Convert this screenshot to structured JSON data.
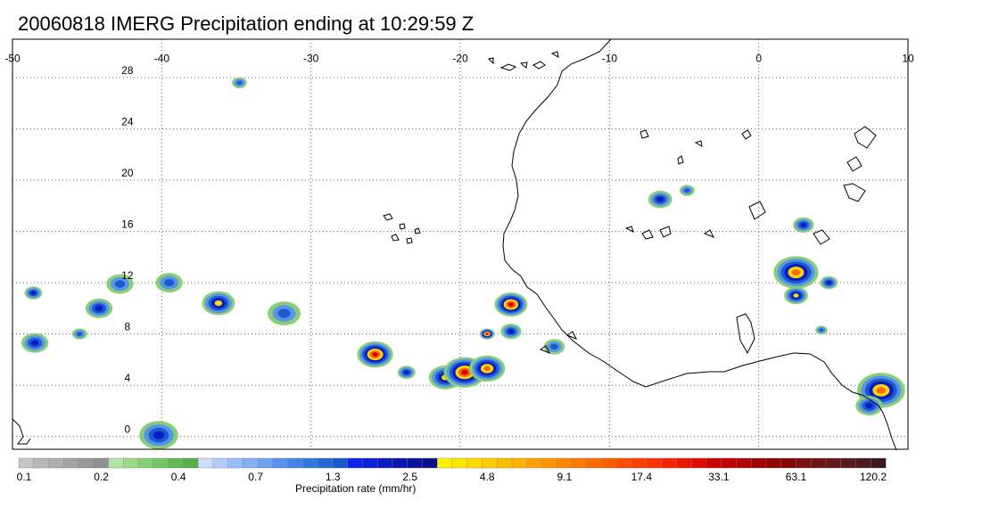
{
  "title": "20060818 IMERG Precipitation ending at 10:29:59 Z",
  "map": {
    "lon_range": [
      -50,
      10
    ],
    "lat_range": [
      -1,
      31
    ],
    "lon_ticks": [
      "-50",
      "-40",
      "-30",
      "-20",
      "-10",
      "0",
      "10"
    ],
    "lat_ticks": [
      "28",
      "24",
      "20",
      "16",
      "12",
      "8",
      "4",
      "0"
    ],
    "grid": "dotted",
    "coastline_color": "#000000"
  },
  "colorbar": {
    "title": "Precipitation rate (mm/hr)",
    "tick_labels": [
      "0.1",
      "0.2",
      "0.4",
      "0.7",
      "1.3",
      "2.5",
      "4.8",
      "9.1",
      "17.4",
      "33.1",
      "63.1",
      "120.2"
    ],
    "colors": [
      "#c4c4c4",
      "#b8b8b8",
      "#adadad",
      "#a3a3a3",
      "#999999",
      "#909090",
      "#b4e3a8",
      "#9ad98a",
      "#86cf76",
      "#74c565",
      "#63bb57",
      "#56b04b",
      "#cfdcff",
      "#b3cbff",
      "#9bbcff",
      "#85aef8",
      "#6fa0f2",
      "#5992ec",
      "#4484e6",
      "#3276df",
      "#2368d7",
      "#1a5acc",
      "#0a24ee",
      "#0a1fd8",
      "#0a1bc4",
      "#0916b0",
      "#08139d",
      "#07108b",
      "#fff200",
      "#ffe600",
      "#ffd900",
      "#ffcc00",
      "#ffbf00",
      "#ffb300",
      "#ffa200",
      "#ff9400",
      "#ff8600",
      "#ff7800",
      "#ff6a00",
      "#ff5c00",
      "#ff4c00",
      "#ff3e00",
      "#ff3000",
      "#f52400",
      "#eb1800",
      "#e00c00",
      "#cf0000",
      "#c00000",
      "#b10000",
      "#a20000",
      "#930000",
      "#850000",
      "#7a1010",
      "#6e1414",
      "#621818",
      "#561a1a",
      "#4a1a1a",
      "#3e1818"
    ]
  },
  "precip_cells": [
    {
      "lon": -48.6,
      "lat": 11.2,
      "r": 0.6,
      "level": 3
    },
    {
      "lon": -48.5,
      "lat": 7.3,
      "r": 0.9,
      "level": 3
    },
    {
      "lon": -44.2,
      "lat": 10.0,
      "r": 0.9,
      "level": 3
    },
    {
      "lon": -45.5,
      "lat": 8.0,
      "r": 0.5,
      "level": 2
    },
    {
      "lon": -42.8,
      "lat": 11.9,
      "r": 0.9,
      "level": 2
    },
    {
      "lon": -39.5,
      "lat": 12.0,
      "r": 0.9,
      "level": 2
    },
    {
      "lon": -36.2,
      "lat": 10.4,
      "r": 1.1,
      "level": 4
    },
    {
      "lon": -31.8,
      "lat": 9.6,
      "r": 1.1,
      "level": 2
    },
    {
      "lon": -34.8,
      "lat": 27.6,
      "r": 0.5,
      "level": 2
    },
    {
      "lon": -40.2,
      "lat": 0.1,
      "r": 1.3,
      "level": 3
    },
    {
      "lon": -25.7,
      "lat": 6.4,
      "r": 1.2,
      "level": 6
    },
    {
      "lon": -23.6,
      "lat": 5.0,
      "r": 0.6,
      "level": 3
    },
    {
      "lon": -21.0,
      "lat": 4.6,
      "r": 1.1,
      "level": 4
    },
    {
      "lon": -19.7,
      "lat": 5.0,
      "r": 1.4,
      "level": 6
    },
    {
      "lon": -18.2,
      "lat": 5.3,
      "r": 1.2,
      "level": 5
    },
    {
      "lon": -16.6,
      "lat": 10.3,
      "r": 1.1,
      "level": 6
    },
    {
      "lon": -18.2,
      "lat": 8.0,
      "r": 0.5,
      "level": 6
    },
    {
      "lon": -16.6,
      "lat": 8.2,
      "r": 0.7,
      "level": 3
    },
    {
      "lon": -13.7,
      "lat": 7.0,
      "r": 0.7,
      "level": 2
    },
    {
      "lon": -6.6,
      "lat": 18.5,
      "r": 0.8,
      "level": 3
    },
    {
      "lon": -4.8,
      "lat": 19.2,
      "r": 0.5,
      "level": 2
    },
    {
      "lon": 3.0,
      "lat": 16.5,
      "r": 0.7,
      "level": 3
    },
    {
      "lon": 2.5,
      "lat": 12.8,
      "r": 1.5,
      "level": 5
    },
    {
      "lon": 2.5,
      "lat": 11.0,
      "r": 0.8,
      "level": 4
    },
    {
      "lon": 4.7,
      "lat": 12.0,
      "r": 0.6,
      "level": 3
    },
    {
      "lon": 4.2,
      "lat": 8.3,
      "r": 0.4,
      "level": 2
    },
    {
      "lon": 8.2,
      "lat": 3.6,
      "r": 1.6,
      "level": 5
    },
    {
      "lon": 7.4,
      "lat": 2.4,
      "r": 0.9,
      "level": 3
    }
  ]
}
